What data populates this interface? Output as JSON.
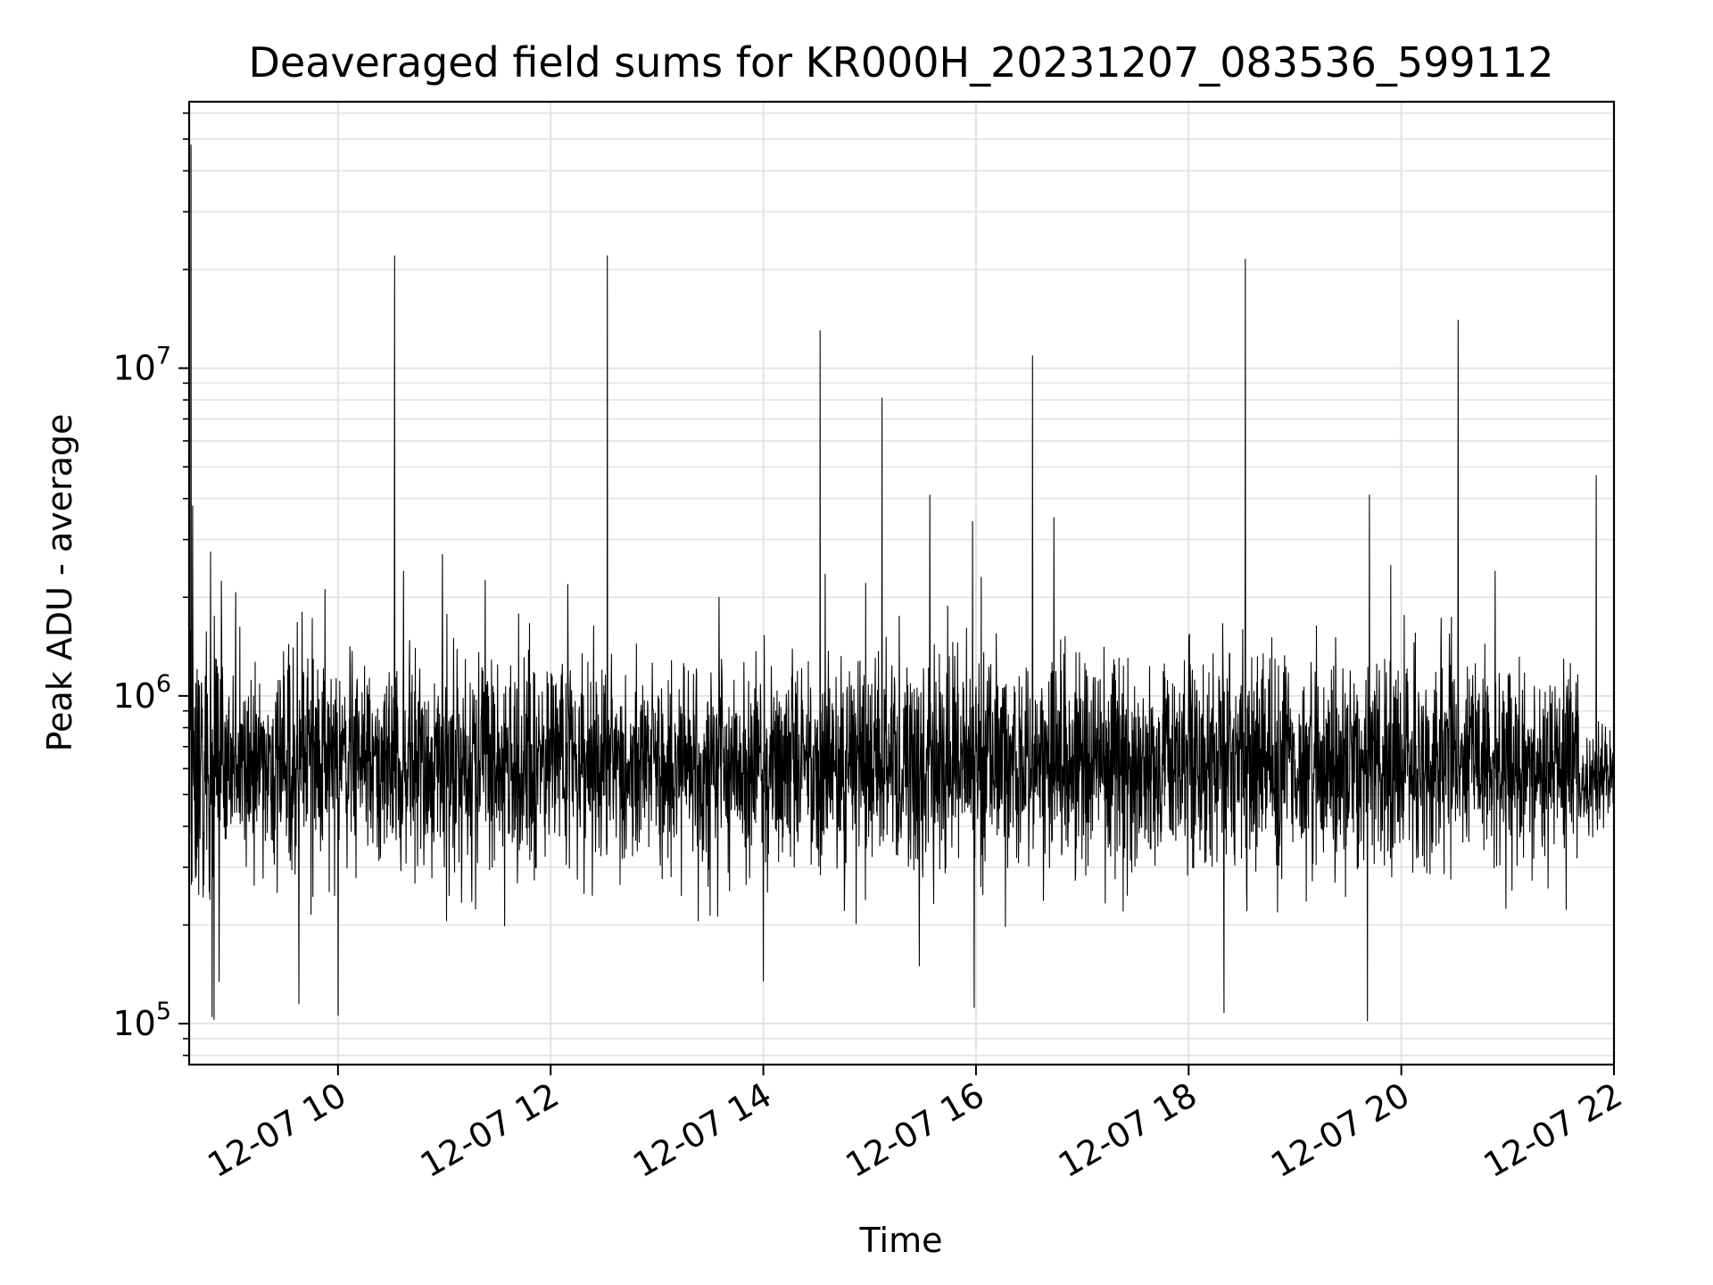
{
  "chart_data": {
    "type": "line",
    "title": "Deaveraged field sums for KR000H_20231207_083536_599112",
    "xlabel": "Time",
    "ylabel": "Peak ADU - average",
    "x_scale": "time",
    "y_scale": "log",
    "xlim": [
      "2023-12-07 08:36",
      "2023-12-07 22:00"
    ],
    "ylim": [
      75000,
      65000000
    ],
    "grid": true,
    "line_color": "#000000",
    "x_ticks": [
      {
        "value": "2023-12-07 10:00",
        "label": "12-07 10"
      },
      {
        "value": "2023-12-07 12:00",
        "label": "12-07 12"
      },
      {
        "value": "2023-12-07 14:00",
        "label": "12-07 14"
      },
      {
        "value": "2023-12-07 16:00",
        "label": "12-07 16"
      },
      {
        "value": "2023-12-07 18:00",
        "label": "12-07 18"
      },
      {
        "value": "2023-12-07 20:00",
        "label": "12-07 20"
      },
      {
        "value": "2023-12-07 22:00",
        "label": "12-07 22"
      }
    ],
    "y_ticks": [
      {
        "value": 100000,
        "base": "10",
        "exp": "5"
      },
      {
        "value": 1000000,
        "base": "10",
        "exp": "6"
      },
      {
        "value": 10000000,
        "base": "10",
        "exp": "7"
      }
    ],
    "series": [
      {
        "baseline": 620000,
        "noise_decades": 0.16,
        "points": [
          {
            "x": "2023-12-07 08:37",
            "y": 48000000
          },
          {
            "x": "2023-12-07 08:36",
            "y": 3800000
          },
          {
            "x": "2023-12-07 08:38",
            "y": 3800000
          },
          {
            "x": "2023-12-07 08:48",
            "y": 2750000
          },
          {
            "x": "2023-12-07 08:49",
            "y": 105000
          },
          {
            "x": "2023-12-07 08:50",
            "y": 103000
          },
          {
            "x": "2023-12-07 09:38",
            "y": 115000
          },
          {
            "x": "2023-12-07 10:00",
            "y": 106000
          },
          {
            "x": "2023-12-07 10:32",
            "y": 22000000
          },
          {
            "x": "2023-12-07 10:37",
            "y": 2400000
          },
          {
            "x": "2023-12-07 10:59",
            "y": 2700000
          },
          {
            "x": "2023-12-07 11:23",
            "y": 2250000
          },
          {
            "x": "2023-12-07 12:32",
            "y": 22000000
          },
          {
            "x": "2023-12-07 13:35",
            "y": 2000000
          },
          {
            "x": "2023-12-07 14:00",
            "y": 135000
          },
          {
            "x": "2023-12-07 14:32",
            "y": 13000000
          },
          {
            "x": "2023-12-07 14:35",
            "y": 2350000
          },
          {
            "x": "2023-12-07 15:07",
            "y": 8100000
          },
          {
            "x": "2023-12-07 15:28",
            "y": 150000
          },
          {
            "x": "2023-12-07 15:34",
            "y": 4100000
          },
          {
            "x": "2023-12-07 15:58",
            "y": 3400000
          },
          {
            "x": "2023-12-07 15:59",
            "y": 112000
          },
          {
            "x": "2023-12-07 16:03",
            "y": 2300000
          },
          {
            "x": "2023-12-07 16:32",
            "y": 10900000
          },
          {
            "x": "2023-12-07 16:44",
            "y": 3500000
          },
          {
            "x": "2023-12-07 18:20",
            "y": 108000
          },
          {
            "x": "2023-12-07 18:32",
            "y": 21500000
          },
          {
            "x": "2023-12-07 19:42",
            "y": 4100000
          },
          {
            "x": "2023-12-07 19:41",
            "y": 102000
          },
          {
            "x": "2023-12-07 19:54",
            "y": 2500000
          },
          {
            "x": "2023-12-07 20:32",
            "y": 14000000
          },
          {
            "x": "2023-12-07 20:53",
            "y": 2400000
          },
          {
            "x": "2023-12-07 21:50",
            "y": 4700000
          }
        ]
      }
    ]
  }
}
